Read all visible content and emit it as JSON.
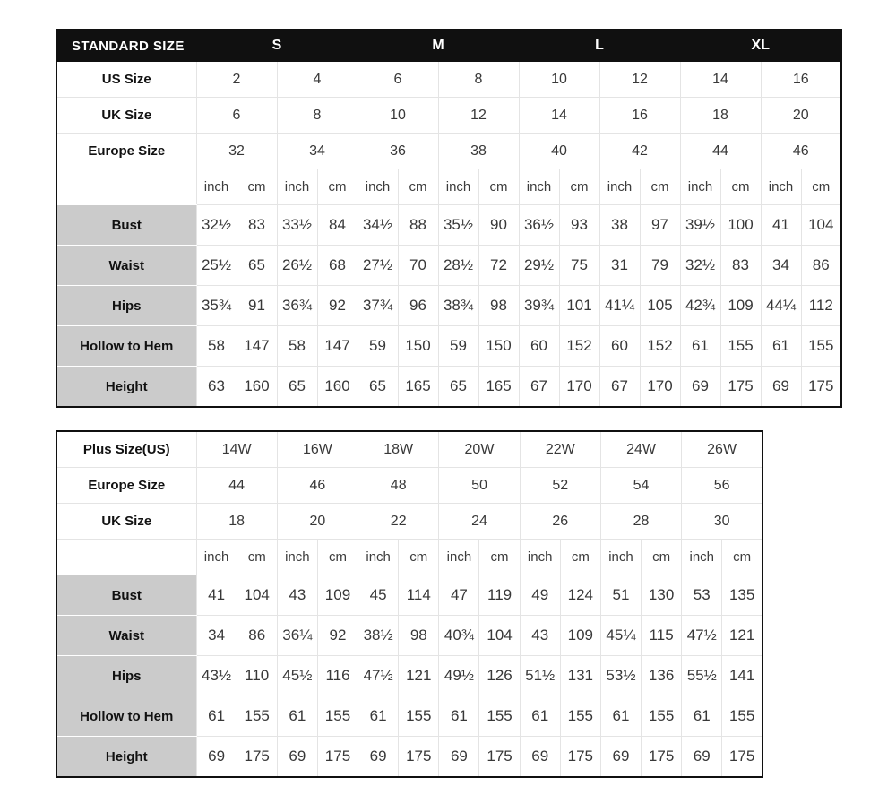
{
  "standard_table": {
    "title": "STANDARD SIZE",
    "size_groups": [
      "S",
      "M",
      "L",
      "XL"
    ],
    "size_rows": [
      {
        "label": "US Size",
        "values": [
          "2",
          "4",
          "6",
          "8",
          "10",
          "12",
          "14",
          "16"
        ]
      },
      {
        "label": "UK Size",
        "values": [
          "6",
          "8",
          "10",
          "12",
          "14",
          "16",
          "18",
          "20"
        ]
      },
      {
        "label": "Europe Size",
        "values": [
          "32",
          "34",
          "36",
          "38",
          "40",
          "42",
          "44",
          "46"
        ]
      }
    ],
    "unit_labels": [
      "inch",
      "cm"
    ],
    "measurement_rows": [
      {
        "label": "Bust",
        "values": [
          "32½",
          "83",
          "33½",
          "84",
          "34½",
          "88",
          "35½",
          "90",
          "36½",
          "93",
          "38",
          "97",
          "39½",
          "100",
          "41",
          "104"
        ]
      },
      {
        "label": "Waist",
        "values": [
          "25½",
          "65",
          "26½",
          "68",
          "27½",
          "70",
          "28½",
          "72",
          "29½",
          "75",
          "31",
          "79",
          "32½",
          "83",
          "34",
          "86"
        ]
      },
      {
        "label": "Hips",
        "values": [
          "35¾",
          "91",
          "36¾",
          "92",
          "37¾",
          "96",
          "38¾",
          "98",
          "39¾",
          "101",
          "41¼",
          "105",
          "42¾",
          "109",
          "44¼",
          "112"
        ]
      },
      {
        "label": "Hollow to Hem",
        "values": [
          "58",
          "147",
          "58",
          "147",
          "59",
          "150",
          "59",
          "150",
          "60",
          "152",
          "60",
          "152",
          "61",
          "155",
          "61",
          "155"
        ]
      },
      {
        "label": "Height",
        "values": [
          "63",
          "160",
          "65",
          "160",
          "65",
          "165",
          "65",
          "165",
          "67",
          "170",
          "67",
          "170",
          "69",
          "175",
          "69",
          "175"
        ]
      }
    ]
  },
  "plus_table": {
    "size_rows": [
      {
        "label": "Plus Size(US)",
        "values": [
          "14W",
          "16W",
          "18W",
          "20W",
          "22W",
          "24W",
          "26W"
        ]
      },
      {
        "label": "Europe Size",
        "values": [
          "44",
          "46",
          "48",
          "50",
          "52",
          "54",
          "56"
        ]
      },
      {
        "label": "UK Size",
        "values": [
          "18",
          "20",
          "22",
          "24",
          "26",
          "28",
          "30"
        ]
      }
    ],
    "unit_labels": [
      "inch",
      "cm"
    ],
    "measurement_rows": [
      {
        "label": "Bust",
        "values": [
          "41",
          "104",
          "43",
          "109",
          "45",
          "114",
          "47",
          "119",
          "49",
          "124",
          "51",
          "130",
          "53",
          "135"
        ]
      },
      {
        "label": "Waist",
        "values": [
          "34",
          "86",
          "36¼",
          "92",
          "38½",
          "98",
          "40¾",
          "104",
          "43",
          "109",
          "45¼",
          "115",
          "47½",
          "121"
        ]
      },
      {
        "label": "Hips",
        "values": [
          "43½",
          "110",
          "45½",
          "116",
          "47½",
          "121",
          "49½",
          "126",
          "51½",
          "131",
          "53½",
          "136",
          "55½",
          "141"
        ]
      },
      {
        "label": "Hollow to Hem",
        "values": [
          "61",
          "155",
          "61",
          "155",
          "61",
          "155",
          "61",
          "155",
          "61",
          "155",
          "61",
          "155",
          "61",
          "155"
        ]
      },
      {
        "label": "Height",
        "values": [
          "69",
          "175",
          "69",
          "175",
          "69",
          "175",
          "69",
          "175",
          "69",
          "175",
          "69",
          "175",
          "69",
          "175"
        ]
      }
    ]
  },
  "colors": {
    "banner_bg": "#101010",
    "banner_text": "#ffffff",
    "label_bg": "#cbcbcb",
    "grid_line": "#e4e4e4",
    "value_text": "#383838"
  }
}
